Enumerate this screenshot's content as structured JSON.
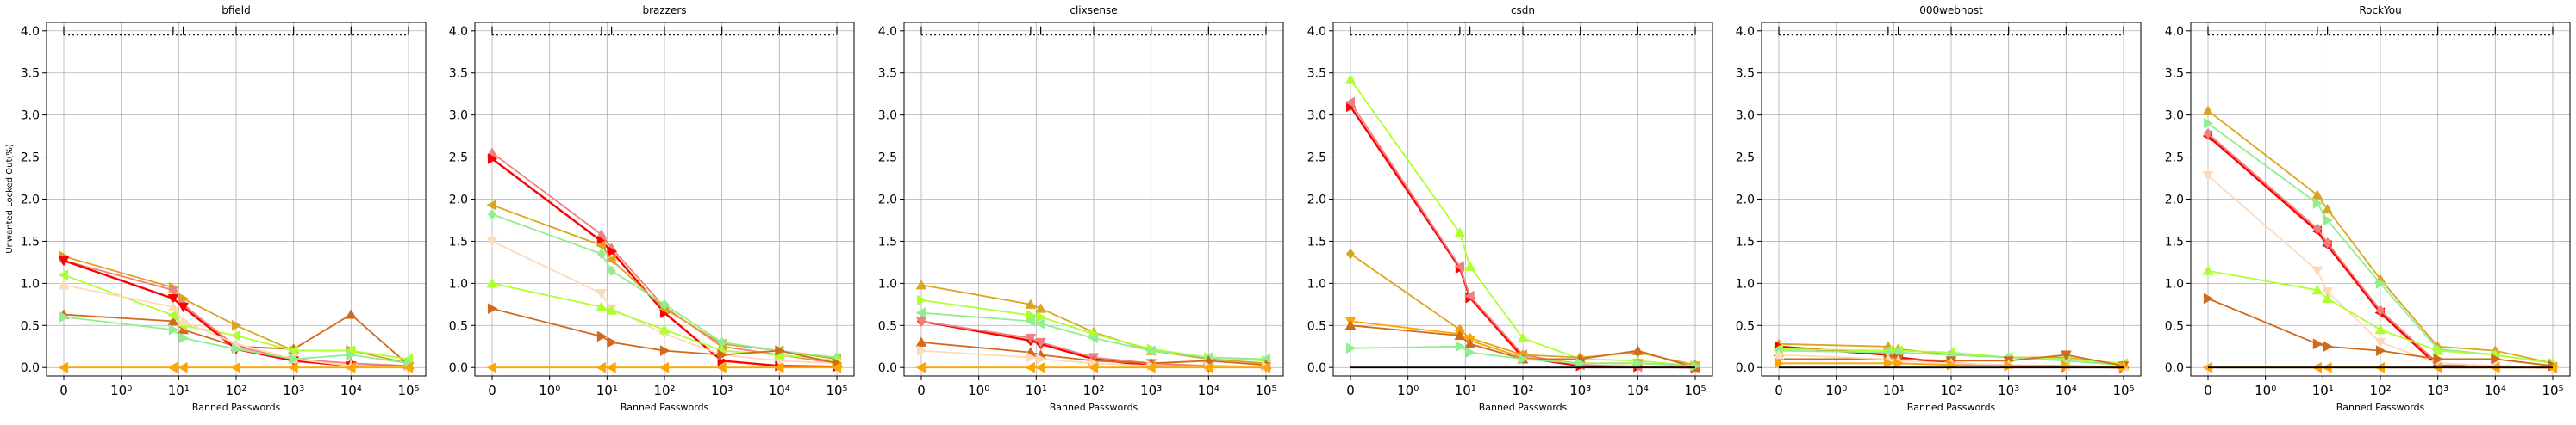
{
  "figure": {
    "ylabel": "Unwanted Locked Out(%)"
  },
  "chart_data": [
    {
      "type": "line",
      "title": "bfield",
      "xlabel": "Banned Passwords",
      "ylabel": "Unwanted Locked Out(%)",
      "xscale": "symlog",
      "x_ticks": [
        "0",
        "10⁰",
        "10¹",
        "10²",
        "10³",
        "10⁴",
        "10⁵"
      ],
      "y_ticks": [
        "0.0",
        "0.5",
        "1.0",
        "1.5",
        "2.0",
        "2.5",
        "3.0",
        "3.5",
        "4.0"
      ],
      "ylim": [
        -0.1,
        4.1
      ],
      "grid": true,
      "x": [
        0,
        8,
        12,
        100,
        1000,
        10000,
        100000
      ],
      "series": [
        {
          "color": "#d2691e",
          "values": [
            0.63,
            0.55,
            0.45,
            0.25,
            0.22,
            0.63,
            0.03
          ]
        },
        {
          "color": "#daa520",
          "values": [
            1.32,
            0.95,
            0.82,
            0.5,
            0.2,
            0.2,
            0.05
          ]
        },
        {
          "color": "#adff2f",
          "values": [
            1.1,
            0.62,
            0.5,
            0.38,
            0.2,
            0.2,
            0.1
          ]
        },
        {
          "color": "#f08080",
          "values": [
            1.27,
            0.92,
            0.75,
            0.25,
            0.1,
            0.05,
            0.02
          ]
        },
        {
          "color": "#ff0000",
          "values": [
            1.27,
            0.82,
            0.72,
            0.22,
            0.08,
            0.02,
            0.01
          ]
        },
        {
          "color": "#ffdab9",
          "values": [
            0.98,
            0.72,
            0.55,
            0.28,
            0.1,
            0.02,
            0.01
          ]
        },
        {
          "color": "#90ee90",
          "values": [
            0.6,
            0.45,
            0.35,
            0.22,
            0.1,
            0.15,
            0.05
          ]
        },
        {
          "color": "#ffa500",
          "values": [
            0.0,
            0.0,
            0.0,
            0.0,
            0.0,
            0.0,
            0.0
          ]
        }
      ]
    },
    {
      "type": "line",
      "title": "brazzers",
      "xlabel": "Banned Passwords",
      "ylabel": "",
      "xscale": "symlog",
      "x_ticks": [
        "0",
        "10⁰",
        "10¹",
        "10²",
        "10³",
        "10⁴",
        "10⁵"
      ],
      "y_ticks": [
        "0.0",
        "0.5",
        "1.0",
        "1.5",
        "2.0",
        "2.5",
        "3.0",
        "3.5",
        "4.0"
      ],
      "ylim": [
        -0.1,
        4.1
      ],
      "grid": true,
      "x": [
        0,
        8,
        12,
        100,
        1000,
        10000,
        100000
      ],
      "series": [
        {
          "color": "#f08080",
          "values": [
            2.55,
            1.58,
            1.42,
            0.72,
            0.25,
            0.15,
            0.05
          ]
        },
        {
          "color": "#ff0000",
          "values": [
            2.48,
            1.5,
            1.38,
            0.65,
            0.08,
            0.02,
            0.01
          ]
        },
        {
          "color": "#daa520",
          "values": [
            1.93,
            1.45,
            1.28,
            0.7,
            0.28,
            0.2,
            0.1
          ]
        },
        {
          "color": "#90ee90",
          "values": [
            1.82,
            1.35,
            1.15,
            0.75,
            0.3,
            0.2,
            0.12
          ]
        },
        {
          "color": "#ffdab9",
          "values": [
            1.5,
            0.88,
            0.7,
            0.4,
            0.15,
            0.08,
            0.05
          ]
        },
        {
          "color": "#adff2f",
          "values": [
            1.0,
            0.72,
            0.68,
            0.45,
            0.2,
            0.15,
            0.08
          ]
        },
        {
          "color": "#d2691e",
          "values": [
            0.7,
            0.37,
            0.3,
            0.2,
            0.15,
            0.2,
            0.05
          ]
        },
        {
          "color": "#ffa500",
          "values": [
            0.0,
            0.0,
            0.0,
            0.0,
            0.0,
            0.0,
            0.0
          ]
        }
      ]
    },
    {
      "type": "line",
      "title": "clixsense",
      "xlabel": "Banned Passwords",
      "ylabel": "",
      "xscale": "symlog",
      "x_ticks": [
        "0",
        "10⁰",
        "10¹",
        "10²",
        "10³",
        "10⁴",
        "10⁵"
      ],
      "y_ticks": [
        "0.0",
        "0.5",
        "1.0",
        "1.5",
        "2.0",
        "2.5",
        "3.0",
        "3.5",
        "4.0"
      ],
      "ylim": [
        -0.1,
        4.1
      ],
      "grid": true,
      "x": [
        0,
        8,
        12,
        100,
        1000,
        10000,
        100000
      ],
      "series": [
        {
          "color": "#daa520",
          "values": [
            0.98,
            0.75,
            0.7,
            0.42,
            0.2,
            0.1,
            0.05
          ]
        },
        {
          "color": "#adff2f",
          "values": [
            0.8,
            0.62,
            0.6,
            0.4,
            0.22,
            0.12,
            0.08
          ]
        },
        {
          "color": "#90ee90",
          "values": [
            0.65,
            0.55,
            0.52,
            0.35,
            0.2,
            0.12,
            0.1
          ]
        },
        {
          "color": "#ff0000",
          "values": [
            0.55,
            0.32,
            0.28,
            0.1,
            0.02,
            0.01,
            0.01
          ]
        },
        {
          "color": "#f08080",
          "values": [
            0.55,
            0.35,
            0.3,
            0.12,
            0.05,
            0.02,
            0.01
          ]
        },
        {
          "color": "#d2691e",
          "values": [
            0.3,
            0.18,
            0.15,
            0.08,
            0.05,
            0.08,
            0.03
          ]
        },
        {
          "color": "#ffdab9",
          "values": [
            0.2,
            0.12,
            0.1,
            0.05,
            0.02,
            0.01,
            0.01
          ]
        },
        {
          "color": "#ffa500",
          "values": [
            0.0,
            0.0,
            0.0,
            0.0,
            0.0,
            0.0,
            0.0
          ]
        }
      ]
    },
    {
      "type": "line",
      "title": "csdn",
      "xlabel": "Banned Passwords",
      "ylabel": "",
      "xscale": "symlog",
      "x_ticks": [
        "0",
        "10⁰",
        "10¹",
        "10²",
        "10³",
        "10⁴",
        "10⁵"
      ],
      "y_ticks": [
        "0.0",
        "0.5",
        "1.0",
        "1.5",
        "2.0",
        "2.5",
        "3.0",
        "3.5",
        "4.0"
      ],
      "ylim": [
        -0.1,
        4.1
      ],
      "grid": true,
      "x": [
        0,
        8,
        12,
        100,
        1000,
        10000,
        100000
      ],
      "series": [
        {
          "color": "#adff2f",
          "values": [
            3.42,
            1.6,
            1.2,
            0.35,
            0.1,
            0.08,
            0.02
          ]
        },
        {
          "color": "#ff0000",
          "values": [
            3.1,
            1.18,
            0.83,
            0.12,
            0.02,
            0.01,
            0.0
          ]
        },
        {
          "color": "#f08080",
          "values": [
            3.15,
            1.2,
            0.85,
            0.15,
            0.03,
            0.01,
            0.0
          ]
        },
        {
          "color": "#daa520",
          "values": [
            1.35,
            0.45,
            0.35,
            0.15,
            0.12,
            0.18,
            0.03
          ]
        },
        {
          "color": "#ffa500",
          "values": [
            0.55,
            0.4,
            0.32,
            0.12,
            0.05,
            0.05,
            0.02
          ]
        },
        {
          "color": "#d2691e",
          "values": [
            0.5,
            0.38,
            0.28,
            0.1,
            0.1,
            0.2,
            0.0
          ]
        },
        {
          "color": "#90ee90",
          "values": [
            0.23,
            0.25,
            0.18,
            0.1,
            0.05,
            0.05,
            0.02
          ]
        },
        {
          "color": "#000000",
          "values": [
            0.0,
            0.0,
            0.0,
            0.0,
            0.0,
            0.0,
            0.0
          ]
        }
      ]
    },
    {
      "type": "line",
      "title": "000webhost",
      "xlabel": "Banned Passwords",
      "ylabel": "",
      "xscale": "symlog",
      "x_ticks": [
        "0",
        "10⁰",
        "10¹",
        "10²",
        "10³",
        "10⁴",
        "10⁵"
      ],
      "y_ticks": [
        "0.0",
        "0.5",
        "1.0",
        "1.5",
        "2.0",
        "2.5",
        "3.0",
        "3.5",
        "4.0"
      ],
      "ylim": [
        -0.1,
        4.1
      ],
      "grid": true,
      "x": [
        0,
        8,
        12,
        100,
        1000,
        10000,
        100000
      ],
      "series": [
        {
          "color": "#daa520",
          "values": [
            0.28,
            0.25,
            0.22,
            0.15,
            0.12,
            0.12,
            0.03
          ]
        },
        {
          "color": "#ff0000",
          "values": [
            0.25,
            0.15,
            0.12,
            0.05,
            0.02,
            0.01,
            0.0
          ]
        },
        {
          "color": "#adff2f",
          "values": [
            0.22,
            0.2,
            0.2,
            0.18,
            0.12,
            0.1,
            0.05
          ]
        },
        {
          "color": "#90ee90",
          "values": [
            0.2,
            0.18,
            0.18,
            0.15,
            0.12,
            0.08,
            0.03
          ]
        },
        {
          "color": "#d2691e",
          "values": [
            0.1,
            0.1,
            0.1,
            0.08,
            0.08,
            0.15,
            0.02
          ]
        },
        {
          "color": "#ffdab9",
          "values": [
            0.15,
            0.1,
            0.08,
            0.05,
            0.03,
            0.02,
            0.01
          ]
        },
        {
          "color": "#ffa500",
          "values": [
            0.05,
            0.05,
            0.05,
            0.03,
            0.02,
            0.02,
            0.01
          ]
        },
        {
          "color": "#000000",
          "values": [
            0.0,
            0.0,
            0.0,
            0.0,
            0.0,
            0.0,
            0.0
          ]
        }
      ]
    },
    {
      "type": "line",
      "title": "RockYou",
      "xlabel": "Banned Passwords",
      "ylabel": "",
      "xscale": "symlog",
      "x_ticks": [
        "0",
        "10⁰",
        "10¹",
        "10²",
        "10³",
        "10⁴",
        "10⁵"
      ],
      "y_ticks": [
        "0.0",
        "0.5",
        "1.0",
        "1.5",
        "2.0",
        "2.5",
        "3.0",
        "3.5",
        "4.0"
      ],
      "ylim": [
        -0.1,
        4.1
      ],
      "grid": true,
      "x": [
        0,
        8,
        12,
        100,
        1000,
        10000,
        100000
      ],
      "series": [
        {
          "color": "#daa520",
          "values": [
            3.05,
            2.05,
            1.88,
            1.05,
            0.25,
            0.2,
            0.05
          ]
        },
        {
          "color": "#90ee90",
          "values": [
            2.9,
            1.95,
            1.75,
            1.0,
            0.22,
            0.15,
            0.05
          ]
        },
        {
          "color": "#ff0000",
          "values": [
            2.75,
            1.62,
            1.45,
            0.65,
            0.02,
            0.01,
            0.0
          ]
        },
        {
          "color": "#f08080",
          "values": [
            2.78,
            1.65,
            1.48,
            0.68,
            0.05,
            0.02,
            0.0
          ]
        },
        {
          "color": "#ffdab9",
          "values": [
            2.28,
            1.15,
            0.9,
            0.3,
            0.05,
            0.02,
            0.0
          ]
        },
        {
          "color": "#adff2f",
          "values": [
            1.15,
            0.92,
            0.82,
            0.45,
            0.2,
            0.15,
            0.05
          ]
        },
        {
          "color": "#d2691e",
          "values": [
            0.82,
            0.28,
            0.25,
            0.2,
            0.1,
            0.1,
            0.02
          ]
        },
        {
          "color": "#ffa500",
          "values": [
            0.0,
            0.0,
            0.0,
            0.0,
            0.0,
            0.0,
            0.0
          ]
        },
        {
          "color": "#000000",
          "values": [
            0.0,
            0.0,
            0.0,
            0.0,
            0.0,
            0.0,
            0.0
          ]
        }
      ]
    }
  ]
}
